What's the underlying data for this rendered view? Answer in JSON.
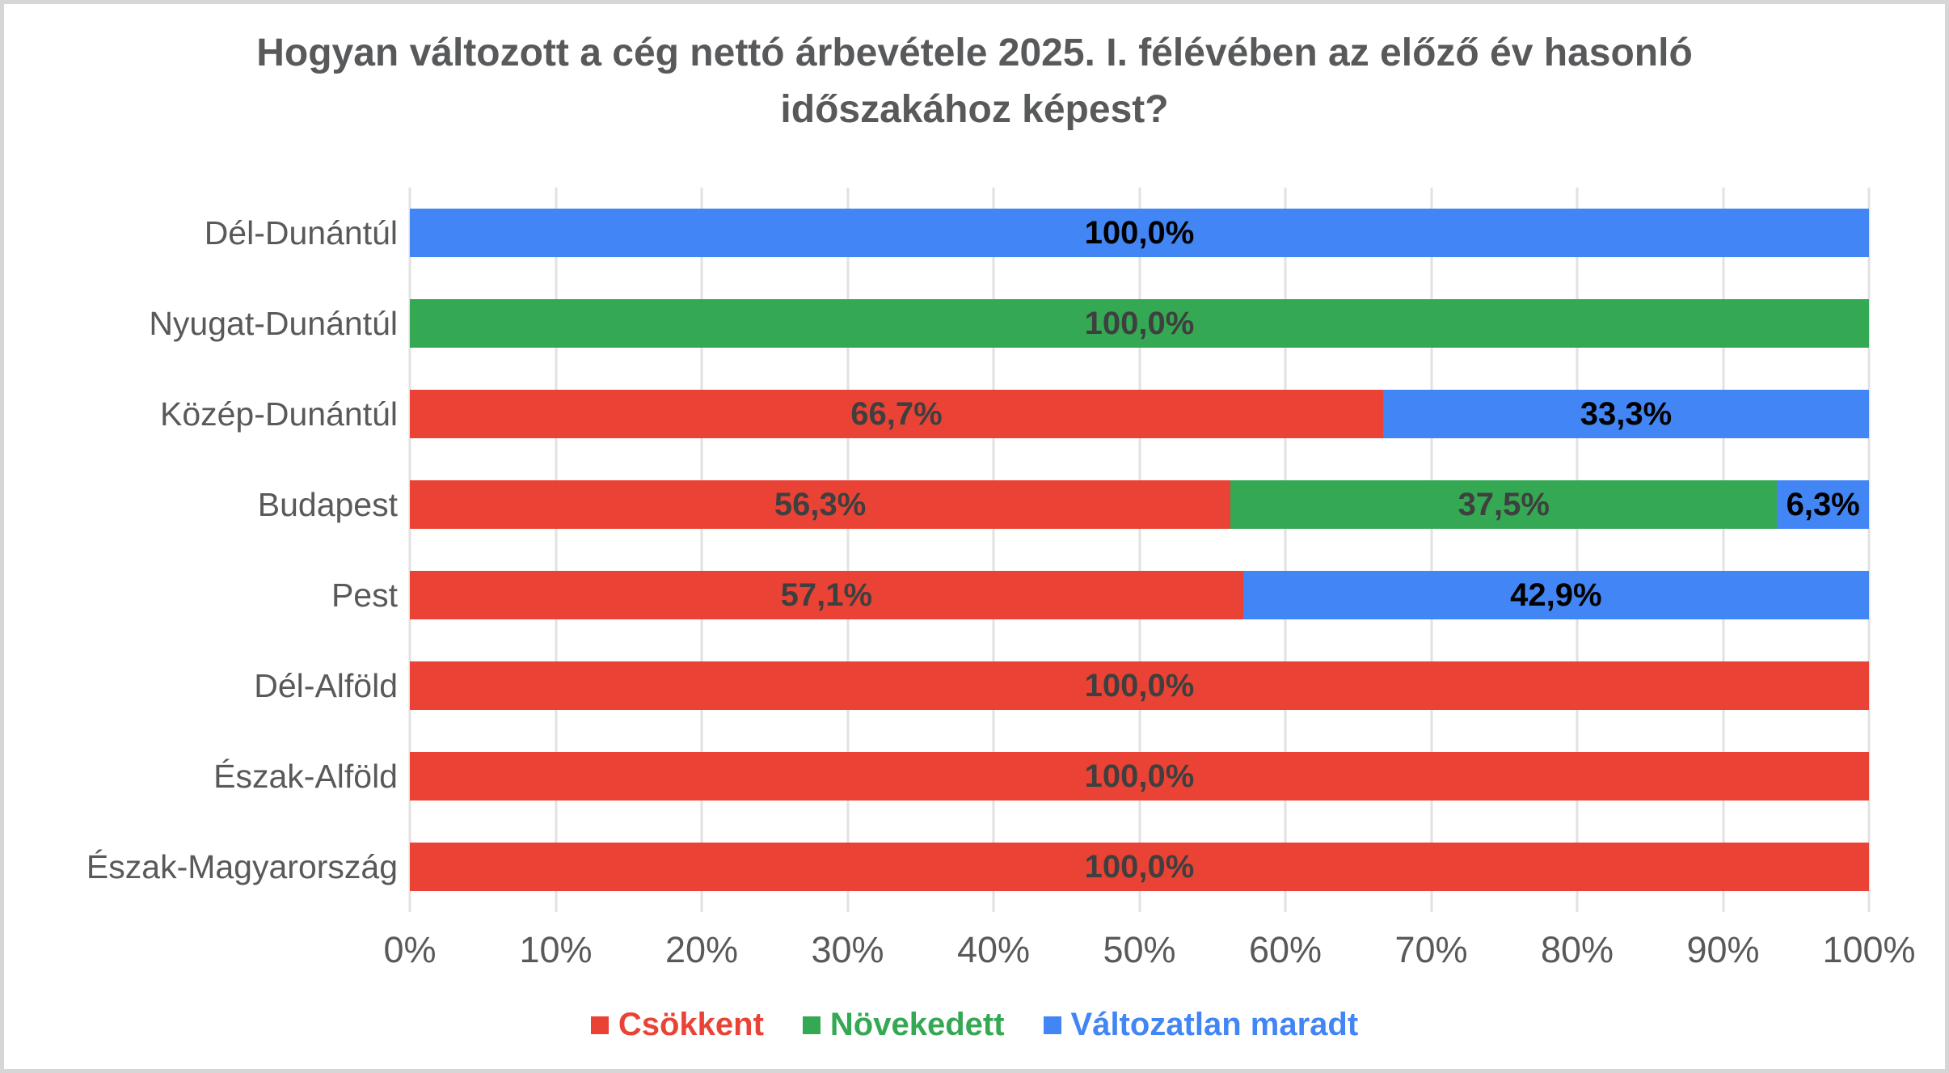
{
  "page": {
    "background_color": "#ffffff",
    "border_color": "#d6d6d6"
  },
  "title": "Hogyan változott a cég nettó árbevétele 2025. I. félévében az előző év hasonló\nidőszakához képest?",
  "chart_data": {
    "type": "bar",
    "orientation": "horizontal",
    "stacked": true,
    "unit": "percent",
    "xlim": [
      0,
      100
    ],
    "grid": true,
    "legend_position": "bottom",
    "title": "Hogyan változott a cég nettó árbevétele 2025. I. félévében az előző év hasonló időszakához képest?",
    "categories": [
      "Dél-Dunántúl",
      "Nyugat-Dunántúl",
      "Közép-Dunántúl",
      "Budapest",
      "Pest",
      "Dél-Alföld",
      "Észak-Alföld",
      "Észak-Magyarország"
    ],
    "series": [
      {
        "name": "Csökkent",
        "color": "#EA4335",
        "label_color": "#3f3f3f",
        "values": [
          0,
          0,
          66.7,
          56.3,
          57.1,
          100.0,
          100.0,
          100.0
        ]
      },
      {
        "name": "Növekedett",
        "color": "#34A853",
        "label_color": "#3f3f3f",
        "values": [
          0,
          100.0,
          0,
          37.5,
          0,
          0,
          0,
          0
        ]
      },
      {
        "name": "Változatlan maradt",
        "color": "#4285F4",
        "label_color": "#000000",
        "values": [
          100.0,
          0,
          33.3,
          6.3,
          42.9,
          0,
          0,
          0
        ]
      }
    ],
    "rows": [
      {
        "category": "Dél-Dunántúl",
        "segments": [
          {
            "series": "Változatlan maradt",
            "value": 100.0,
            "label": "100,0%"
          }
        ]
      },
      {
        "category": "Nyugat-Dunántúl",
        "segments": [
          {
            "series": "Növekedett",
            "value": 100.0,
            "label": "100,0%"
          }
        ]
      },
      {
        "category": "Közép-Dunántúl",
        "segments": [
          {
            "series": "Csökkent",
            "value": 66.7,
            "label": "66,7%"
          },
          {
            "series": "Változatlan maradt",
            "value": 33.3,
            "label": "33,3%"
          }
        ]
      },
      {
        "category": "Budapest",
        "segments": [
          {
            "series": "Csökkent",
            "value": 56.3,
            "label": "56,3%"
          },
          {
            "series": "Növekedett",
            "value": 37.5,
            "label": "37,5%"
          },
          {
            "series": "Változatlan maradt",
            "value": 6.3,
            "label": "6,3%"
          }
        ]
      },
      {
        "category": "Pest",
        "segments": [
          {
            "series": "Csökkent",
            "value": 57.1,
            "label": "57,1%"
          },
          {
            "series": "Változatlan maradt",
            "value": 42.9,
            "label": "42,9%"
          }
        ]
      },
      {
        "category": "Dél-Alföld",
        "segments": [
          {
            "series": "Csökkent",
            "value": 100.0,
            "label": "100,0%"
          }
        ]
      },
      {
        "category": "Észak-Alföld",
        "segments": [
          {
            "series": "Csökkent",
            "value": 100.0,
            "label": "100,0%"
          }
        ]
      },
      {
        "category": "Észak-Magyarország",
        "segments": [
          {
            "series": "Csökkent",
            "value": 100.0,
            "label": "100,0%"
          }
        ]
      }
    ],
    "x_ticks": [
      "0%",
      "10%",
      "20%",
      "30%",
      "40%",
      "50%",
      "60%",
      "70%",
      "80%",
      "90%",
      "100%"
    ],
    "gridline_color": "#e2e2e2",
    "axis_text_color": "#595959",
    "title_color": "#58595b"
  }
}
